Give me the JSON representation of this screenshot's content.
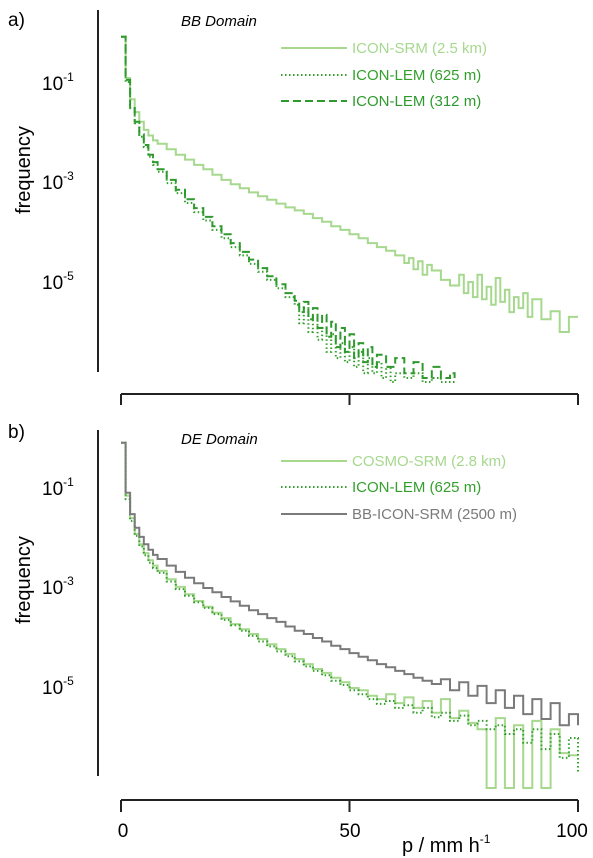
{
  "colors": {
    "light_green": "#a6d88e",
    "green": "#33a02c",
    "dark_green": "#2e9a2e",
    "gray": "#7a7a7a",
    "axis": "#222222"
  },
  "chart_data": [
    {
      "type": "line",
      "subtype": "step-histogram",
      "panel_label": "a)",
      "annotation": "BB Domain",
      "ylabel": "frequency",
      "xlabel": "",
      "x_ticks": [
        0,
        50,
        100
      ],
      "x_tick_labels_shown": false,
      "yscale": "log",
      "ylim": [
        1e-07,
        1
      ],
      "xlim": [
        0,
        100
      ],
      "y_ticks": [
        {
          "value": 0.1,
          "base": "10",
          "exp": "-1"
        },
        {
          "value": 0.001,
          "base": "10",
          "exp": "-3"
        },
        {
          "value": 1e-05,
          "base": "10",
          "exp": "-5"
        }
      ],
      "series": [
        {
          "name": "ICON-SRM (2.5 km)",
          "style": "solid",
          "color": "#a6d88e",
          "x": [
            0,
            1,
            2,
            3,
            4,
            5,
            6,
            7,
            8,
            10,
            12,
            14,
            16,
            18,
            20,
            22,
            24,
            26,
            28,
            30,
            32,
            34,
            36,
            38,
            40,
            42,
            44,
            46,
            48,
            50,
            52,
            54,
            56,
            58,
            60,
            62,
            63,
            64,
            65,
            66,
            67,
            68,
            70,
            72,
            74,
            75,
            76,
            77,
            78,
            79,
            80,
            81,
            82,
            83,
            84,
            85,
            86,
            87,
            88,
            89,
            90,
            92,
            94,
            96,
            98,
            100
          ],
          "y": [
            0.8,
            0.12,
            0.045,
            0.025,
            0.016,
            0.011,
            0.0085,
            0.0068,
            0.0058,
            0.0045,
            0.0035,
            0.0028,
            0.0022,
            0.0018,
            0.0014,
            0.0011,
            0.0009,
            0.00075,
            0.00062,
            0.00052,
            0.00044,
            0.00037,
            0.00031,
            0.00027,
            0.00023,
            0.00019,
            0.00016,
            0.00013,
            0.00011,
            9e-05,
            7.5e-05,
            6e-05,
            5e-05,
            4.2e-05,
            3.4e-05,
            2.4e-05,
            3e-05,
            1.8e-05,
            2.6e-05,
            1.4e-05,
            2.2e-05,
            1.7e-05,
            1.1e-05,
            8.5e-06,
            1.4e-05,
            6e-06,
            1e-05,
            5e-06,
            1.4e-05,
            4.5e-06,
            8e-06,
            3.5e-06,
            1.2e-05,
            4e-06,
            7e-06,
            2.5e-06,
            5e-06,
            3e-06,
            6e-06,
            2e-06,
            4.5e-06,
            1.8e-06,
            2.6e-06,
            1e-06,
            2e-06,
            2e-06
          ]
        },
        {
          "name": "ICON-LEM (625 m)",
          "style": "dotted",
          "color": "#33a02c",
          "x": [
            0,
            1,
            2,
            3,
            4,
            5,
            6,
            7,
            8,
            10,
            12,
            14,
            16,
            18,
            20,
            22,
            24,
            26,
            28,
            30,
            32,
            34,
            36,
            38,
            39,
            40,
            41,
            42,
            43,
            44,
            45,
            46,
            47,
            48,
            49,
            50,
            51,
            52,
            53,
            54,
            55,
            56,
            57,
            58,
            59,
            60,
            62,
            64,
            66,
            68,
            70,
            72,
            73
          ],
          "y": [
            0.8,
            0.1,
            0.03,
            0.015,
            0.008,
            0.005,
            0.0032,
            0.0022,
            0.0016,
            0.00095,
            0.0006,
            0.00038,
            0.00025,
            0.00017,
            0.00011,
            7.5e-05,
            5e-05,
            3.4e-05,
            2.3e-05,
            1.6e-05,
            1.1e-05,
            7.5e-06,
            5e-06,
            3.5e-06,
            1.5e-06,
            3e-06,
            1e-06,
            2e-06,
            7e-07,
            1.2e-06,
            4e-07,
            9e-07,
            3e-07,
            6e-07,
            2.5e-07,
            5e-07,
            2e-07,
            4e-07,
            1.5e-07,
            3e-07,
            1.5e-07,
            2.5e-07,
            1.2e-07,
            2e-07,
            1e-07,
            1.5e-07,
            1.2e-07,
            1.5e-07,
            1e-07,
            1.2e-07,
            1e-07,
            1e-07,
            1e-07
          ]
        },
        {
          "name": "ICON-LEM (312 m)",
          "style": "dashed",
          "color": "#2e9a2e",
          "x": [
            0,
            1,
            2,
            3,
            4,
            5,
            6,
            7,
            8,
            10,
            12,
            14,
            16,
            18,
            20,
            22,
            24,
            26,
            28,
            30,
            32,
            34,
            36,
            38,
            39,
            40,
            41,
            42,
            43,
            44,
            45,
            46,
            47,
            48,
            49,
            50,
            51,
            52,
            53,
            54,
            55,
            56,
            58,
            60,
            62,
            64,
            66,
            68,
            70,
            72,
            73
          ],
          "y": [
            0.8,
            0.11,
            0.032,
            0.016,
            0.009,
            0.0055,
            0.0035,
            0.0025,
            0.0018,
            0.0011,
            0.0007,
            0.00045,
            0.0003,
            0.0002,
            0.00013,
            9e-05,
            6e-05,
            4e-05,
            2.8e-05,
            1.9e-05,
            1.3e-05,
            9e-06,
            6e-06,
            4.2e-06,
            2.5e-06,
            4e-06,
            1.8e-06,
            3e-06,
            1.2e-06,
            2.2e-06,
            8e-07,
            1.6e-06,
            5e-07,
            1.2e-06,
            4e-07,
            9e-07,
            3e-07,
            6e-07,
            2.5e-07,
            5e-07,
            2e-07,
            3.5e-07,
            2e-07,
            3e-07,
            1.5e-07,
            2.5e-07,
            1.2e-07,
            2e-07,
            1.2e-07,
            1.5e-07,
            1.2e-07
          ]
        }
      ]
    },
    {
      "type": "line",
      "subtype": "step-histogram",
      "panel_label": "b)",
      "annotation": "DE Domain",
      "ylabel": "frequency",
      "xlabel_main": "p / mm h",
      "xlabel_sup": "-1",
      "x_ticks": [
        0,
        50,
        100
      ],
      "x_tick_labels": [
        "0",
        "50",
        "100"
      ],
      "yscale": "log",
      "ylim": [
        1e-07,
        1
      ],
      "xlim": [
        0,
        100
      ],
      "y_ticks": [
        {
          "value": 0.1,
          "base": "10",
          "exp": "-1"
        },
        {
          "value": 0.001,
          "base": "10",
          "exp": "-3"
        },
        {
          "value": 1e-05,
          "base": "10",
          "exp": "-5"
        }
      ],
      "series": [
        {
          "name": "COSMO-SRM (2.8 km)",
          "style": "solid",
          "color": "#a6d88e",
          "x": [
            0,
            1,
            2,
            3,
            4,
            5,
            6,
            7,
            8,
            10,
            12,
            14,
            16,
            18,
            20,
            22,
            24,
            26,
            28,
            30,
            32,
            34,
            36,
            38,
            40,
            42,
            44,
            46,
            48,
            50,
            52,
            54,
            56,
            58,
            60,
            62,
            64,
            66,
            68,
            70,
            72,
            74,
            76,
            78,
            80,
            82,
            84,
            86,
            88,
            90,
            92,
            94,
            96,
            98,
            100
          ],
          "y": [
            0.8,
            0.07,
            0.025,
            0.012,
            0.0075,
            0.005,
            0.0036,
            0.0028,
            0.0022,
            0.0015,
            0.00105,
            0.00075,
            0.00055,
            0.00042,
            0.00032,
            0.00025,
            0.00019,
            0.00015,
            0.00012,
            9.5e-05,
            7.5e-05,
            6e-05,
            4.8e-05,
            3.8e-05,
            3e-05,
            2.4e-05,
            2e-05,
            1.6e-05,
            1.3e-05,
            1e-05,
            9e-06,
            7e-06,
            6e-06,
            7.5e-06,
            5e-06,
            6.5e-06,
            4e-06,
            5.5e-06,
            3.2e-06,
            6e-06,
            2.5e-06,
            3.5e-06,
            2e-06,
            1.5e-06,
            1e-07,
            2.5e-06,
            1e-07,
            1.8e-06,
            1e-07,
            2.2e-06,
            1e-07,
            1.5e-06,
            5e-07,
            4.5e-07,
            4.5e-07
          ]
        },
        {
          "name": "ICON-LEM (625 m)",
          "style": "dotted",
          "color": "#33a02c",
          "x": [
            0,
            1,
            2,
            3,
            4,
            5,
            6,
            7,
            8,
            10,
            12,
            14,
            16,
            18,
            20,
            22,
            24,
            26,
            28,
            30,
            32,
            34,
            36,
            38,
            40,
            42,
            44,
            46,
            48,
            50,
            52,
            54,
            56,
            58,
            60,
            62,
            64,
            66,
            68,
            70,
            72,
            74,
            76,
            78,
            80,
            82,
            84,
            86,
            88,
            90,
            92,
            94,
            96,
            98,
            100
          ],
          "y": [
            0.8,
            0.06,
            0.022,
            0.011,
            0.0068,
            0.0045,
            0.0032,
            0.0025,
            0.002,
            0.00135,
            0.00095,
            0.0007,
            0.00052,
            0.0004,
            0.0003,
            0.00023,
            0.00018,
            0.00014,
            0.00011,
            8.5e-05,
            6.8e-05,
            5.4e-05,
            4.3e-05,
            3.4e-05,
            2.7e-05,
            2.2e-05,
            1.8e-05,
            1.4e-05,
            1.15e-05,
            9e-06,
            7.5e-06,
            6e-06,
            4.8e-06,
            5.5e-06,
            4e-06,
            4.5e-06,
            3.2e-06,
            4e-06,
            2.6e-06,
            3.2e-06,
            2.2e-06,
            2.8e-06,
            1.8e-06,
            2.2e-06,
            1.5e-06,
            1.8e-06,
            1.2e-06,
            1.5e-06,
            8e-07,
            1.5e-06,
            6e-07,
            1.2e-06,
            4e-07,
            1e-06,
            2e-07
          ]
        },
        {
          "name": "BB-ICON-SRM (2500 m)",
          "style": "solid",
          "color": "#7a7a7a",
          "x": [
            0,
            1,
            2,
            3,
            4,
            5,
            6,
            7,
            8,
            10,
            12,
            14,
            16,
            18,
            20,
            22,
            24,
            26,
            28,
            30,
            32,
            34,
            36,
            38,
            40,
            42,
            44,
            46,
            48,
            50,
            52,
            54,
            56,
            58,
            60,
            62,
            64,
            66,
            68,
            70,
            72,
            74,
            76,
            78,
            80,
            82,
            84,
            86,
            88,
            90,
            92,
            94,
            96,
            98,
            100
          ],
          "y": [
            0.8,
            0.08,
            0.03,
            0.016,
            0.0105,
            0.0075,
            0.0058,
            0.0046,
            0.0038,
            0.0028,
            0.0021,
            0.0016,
            0.00125,
            0.001,
            0.00082,
            0.00066,
            0.00054,
            0.00044,
            0.00036,
            0.0003,
            0.00025,
            0.00021,
            0.00017,
            0.00014,
            0.00012,
            0.0001,
            8.5e-05,
            7e-05,
            6e-05,
            5e-05,
            4.2e-05,
            3.6e-05,
            3e-05,
            2.6e-05,
            2.2e-05,
            1.9e-05,
            1.6e-05,
            1.4e-05,
            1.2e-05,
            1.5e-05,
            9e-06,
            1.3e-05,
            7e-06,
            1.1e-05,
            5e-06,
            9e-06,
            4e-06,
            7e-06,
            3e-06,
            6e-06,
            2.4e-06,
            5e-06,
            1.8e-06,
            3e-06,
            1.8e-06
          ]
        }
      ]
    }
  ]
}
